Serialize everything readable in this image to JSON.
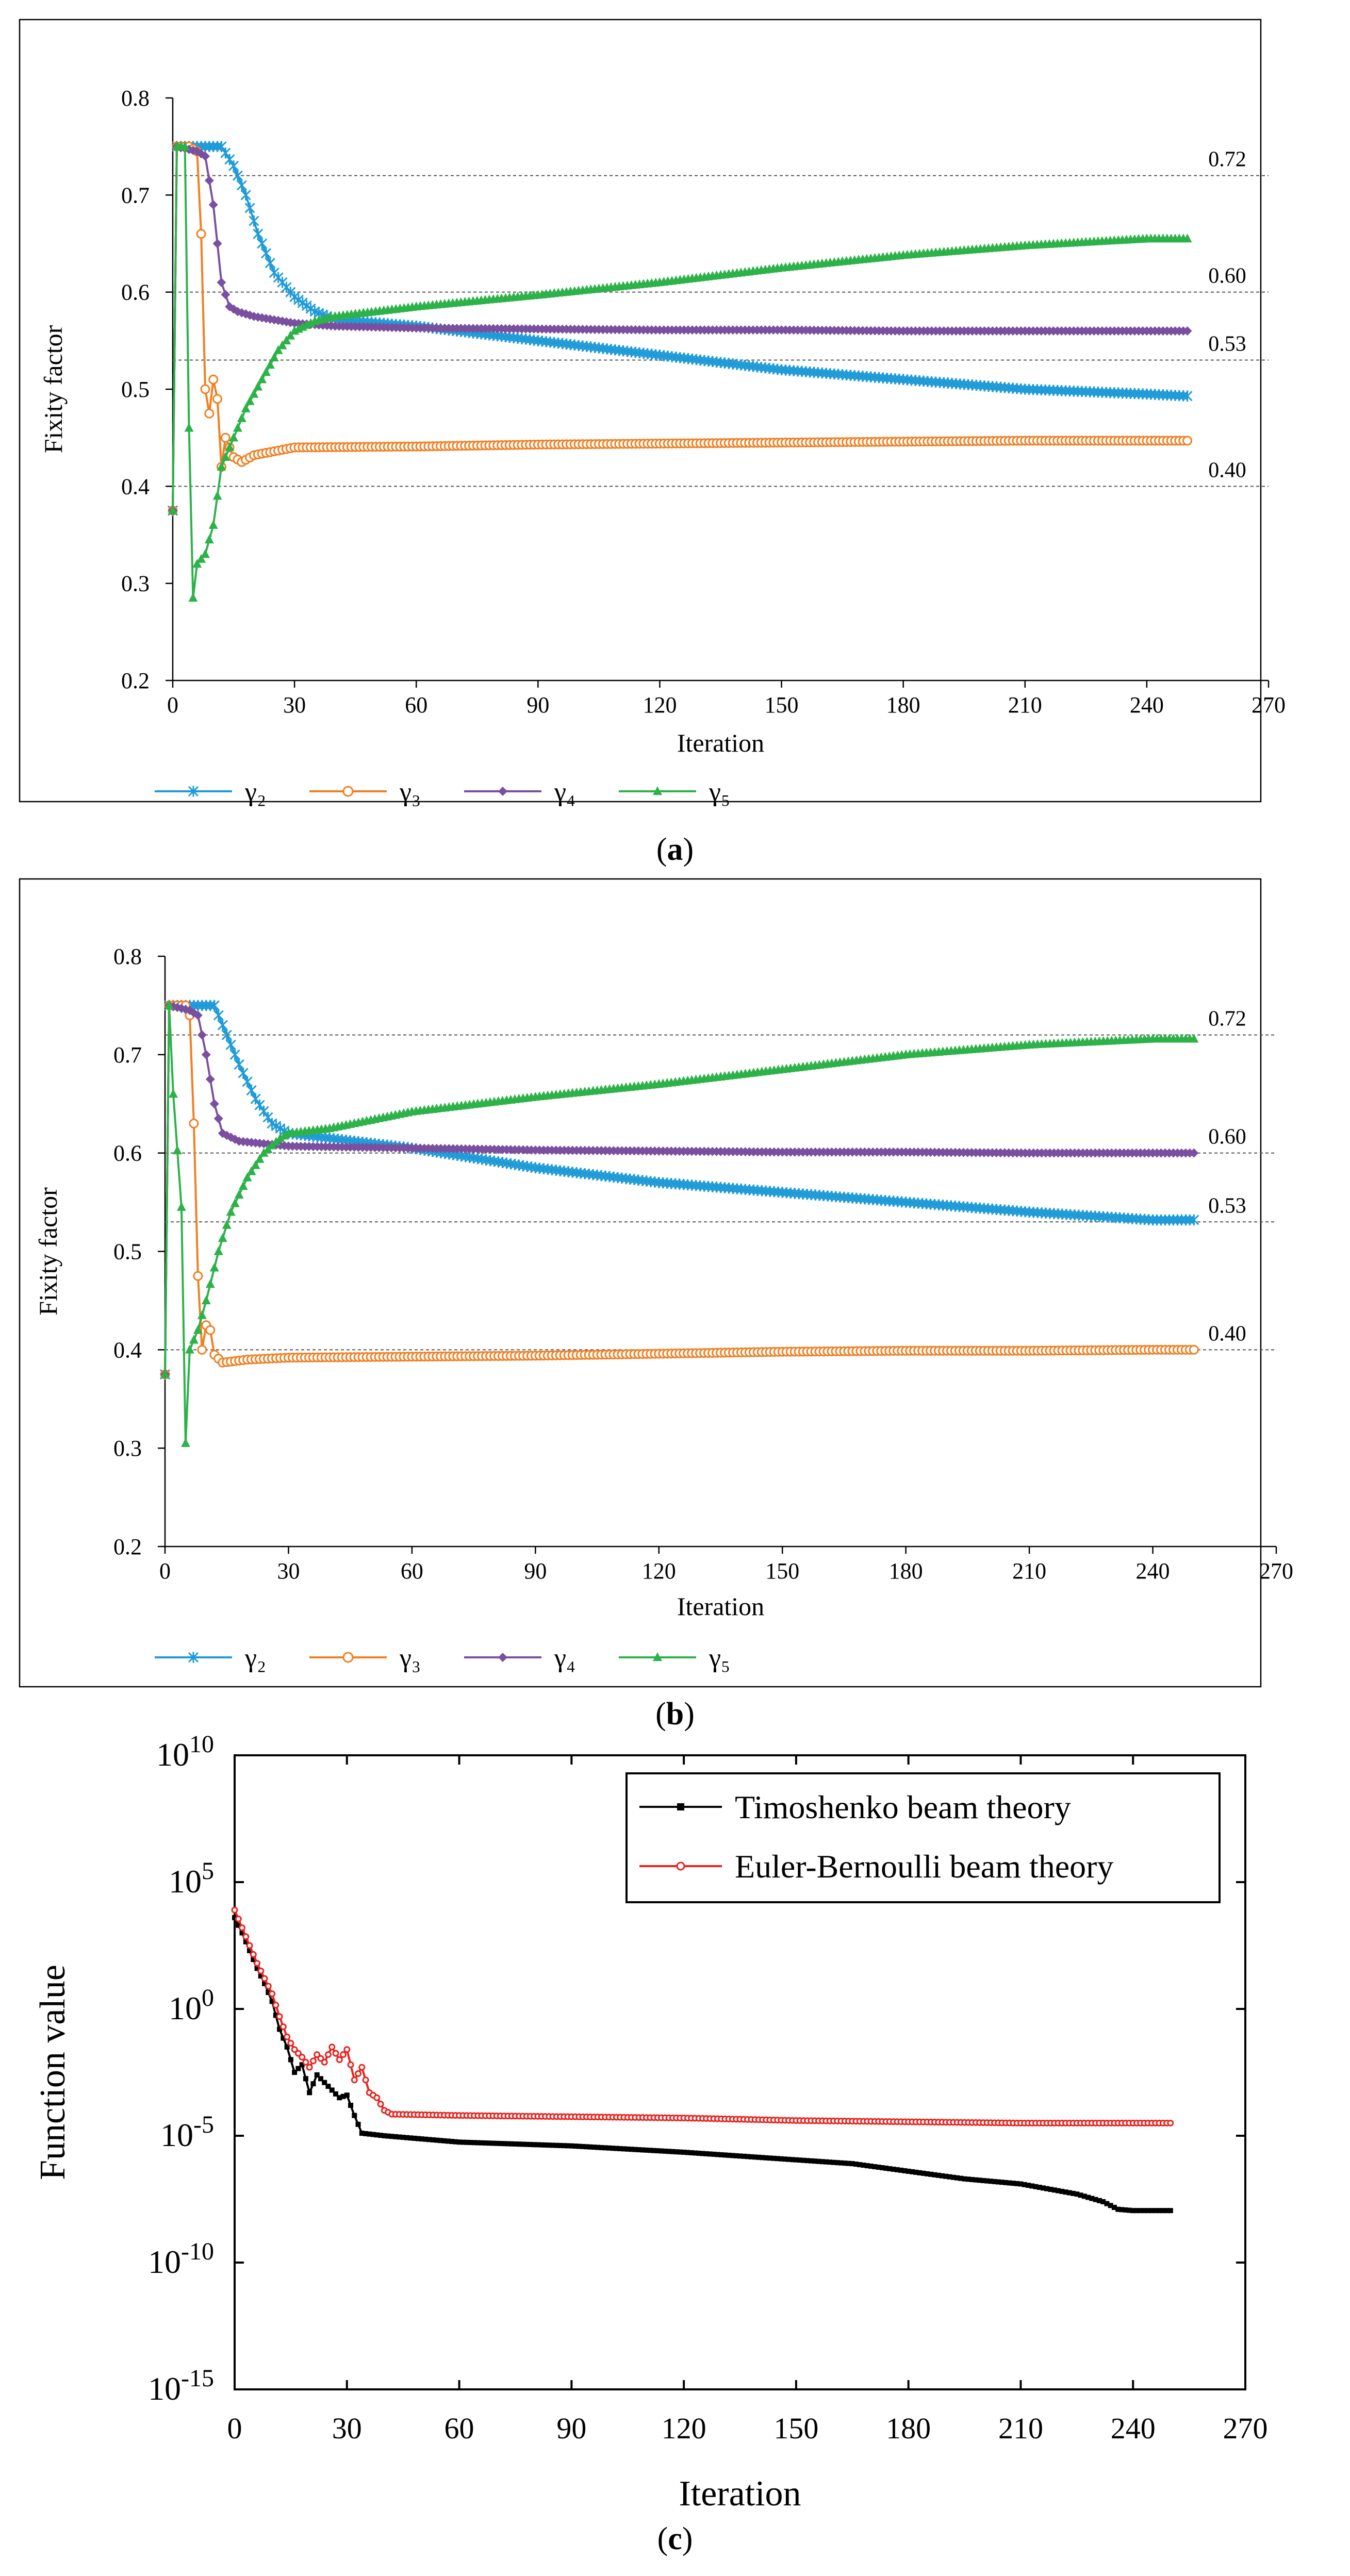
{
  "chart_data": [
    {
      "type": "line",
      "panel_label": "(a)",
      "title": "",
      "xlabel": "Iteration",
      "ylabel": "Fixity factor",
      "xlim": [
        0,
        270
      ],
      "ylim": [
        0.2,
        0.8
      ],
      "xticks": [
        0,
        30,
        60,
        90,
        120,
        150,
        180,
        210,
        240,
        270
      ],
      "xtick_labels": [
        "0",
        "30",
        "60",
        "90",
        "120",
        "150",
        "180",
        "210",
        "240",
        "270"
      ],
      "yticks": [
        0.2,
        0.3,
        0.4,
        0.5,
        0.6,
        0.7,
        0.8
      ],
      "ytick_labels": [
        "0.2",
        "0.3",
        "0.4",
        "0.5",
        "0.6",
        "0.7",
        "0.8"
      ],
      "reference_lines": [
        {
          "value": 0.72,
          "label": "0.72"
        },
        {
          "value": 0.6,
          "label": "0.60"
        },
        {
          "value": 0.53,
          "label": "0.53"
        },
        {
          "value": 0.4,
          "label": "0.40"
        }
      ],
      "legend_position": "bottom",
      "series": [
        {
          "name": "γ₂",
          "color": "#1f9bd7",
          "marker": "x",
          "points": [
            [
              0,
              0.375
            ],
            [
              1,
              0.75
            ],
            [
              5,
              0.75
            ],
            [
              12,
              0.75
            ],
            [
              15,
              0.73
            ],
            [
              18,
              0.7
            ],
            [
              21,
              0.66
            ],
            [
              25,
              0.62
            ],
            [
              30,
              0.595
            ],
            [
              35,
              0.58
            ],
            [
              40,
              0.572
            ],
            [
              60,
              0.565
            ],
            [
              90,
              0.55
            ],
            [
              120,
              0.535
            ],
            [
              150,
              0.52
            ],
            [
              180,
              0.51
            ],
            [
              210,
              0.5
            ],
            [
              240,
              0.495
            ],
            [
              250,
              0.493
            ]
          ]
        },
        {
          "name": "γ₃",
          "color": "#f07f22",
          "marker": "circle",
          "points": [
            [
              0,
              0.375
            ],
            [
              1,
              0.75
            ],
            [
              4,
              0.75
            ],
            [
              6,
              0.745
            ],
            [
              7,
              0.66
            ],
            [
              8,
              0.5
            ],
            [
              9,
              0.475
            ],
            [
              10,
              0.51
            ],
            [
              11,
              0.49
            ],
            [
              12,
              0.42
            ],
            [
              13,
              0.45
            ],
            [
              14,
              0.44
            ],
            [
              15,
              0.43
            ],
            [
              17,
              0.425
            ],
            [
              20,
              0.432
            ],
            [
              30,
              0.44
            ],
            [
              60,
              0.441
            ],
            [
              90,
              0.443
            ],
            [
              120,
              0.444
            ],
            [
              150,
              0.445
            ],
            [
              180,
              0.446
            ],
            [
              210,
              0.447
            ],
            [
              240,
              0.447
            ],
            [
              250,
              0.447
            ]
          ]
        },
        {
          "name": "γ₄",
          "color": "#7b4fa0",
          "marker": "diamond",
          "points": [
            [
              0,
              0.375
            ],
            [
              1,
              0.75
            ],
            [
              6,
              0.745
            ],
            [
              8,
              0.74
            ],
            [
              10,
              0.69
            ],
            [
              12,
              0.61
            ],
            [
              14,
              0.585
            ],
            [
              16,
              0.58
            ],
            [
              20,
              0.575
            ],
            [
              30,
              0.568
            ],
            [
              40,
              0.565
            ],
            [
              60,
              0.563
            ],
            [
              90,
              0.562
            ],
            [
              120,
              0.561
            ],
            [
              150,
              0.561
            ],
            [
              180,
              0.56
            ],
            [
              210,
              0.56
            ],
            [
              240,
              0.56
            ],
            [
              250,
              0.56
            ]
          ]
        },
        {
          "name": "γ₅",
          "color": "#2db24a",
          "marker": "triangle",
          "points": [
            [
              0,
              0.375
            ],
            [
              1,
              0.75
            ],
            [
              3,
              0.75
            ],
            [
              4,
              0.46
            ],
            [
              5,
              0.285
            ],
            [
              6,
              0.32
            ],
            [
              8,
              0.33
            ],
            [
              10,
              0.36
            ],
            [
              12,
              0.42
            ],
            [
              15,
              0.45
            ],
            [
              18,
              0.48
            ],
            [
              22,
              0.51
            ],
            [
              26,
              0.54
            ],
            [
              30,
              0.56
            ],
            [
              35,
              0.57
            ],
            [
              40,
              0.575
            ],
            [
              60,
              0.585
            ],
            [
              90,
              0.597
            ],
            [
              120,
              0.61
            ],
            [
              150,
              0.625
            ],
            [
              180,
              0.638
            ],
            [
              210,
              0.648
            ],
            [
              240,
              0.655
            ],
            [
              250,
              0.655
            ]
          ]
        }
      ]
    },
    {
      "type": "line",
      "panel_label": "(b)",
      "title": "",
      "xlabel": "Iteration",
      "ylabel": "Fixity factor",
      "xlim": [
        0,
        270
      ],
      "ylim": [
        0.2,
        0.8
      ],
      "xticks": [
        0,
        30,
        60,
        90,
        120,
        150,
        180,
        210,
        240,
        270
      ],
      "xtick_labels": [
        "0",
        "30",
        "60",
        "90",
        "120",
        "150",
        "180",
        "210",
        "240",
        "270"
      ],
      "yticks": [
        0.2,
        0.3,
        0.4,
        0.5,
        0.6,
        0.7,
        0.8
      ],
      "ytick_labels": [
        "0.2",
        "0.3",
        "0.4",
        "0.5",
        "0.6",
        "0.7",
        "0.8"
      ],
      "reference_lines": [
        {
          "value": 0.72,
          "label": "0.72"
        },
        {
          "value": 0.6,
          "label": "0.60"
        },
        {
          "value": 0.53,
          "label": "0.53"
        },
        {
          "value": 0.4,
          "label": "0.40"
        }
      ],
      "legend_position": "bottom",
      "series": [
        {
          "name": "γ₂",
          "color": "#1f9bd7",
          "marker": "x",
          "points": [
            [
              0,
              0.375
            ],
            [
              1,
              0.75
            ],
            [
              5,
              0.75
            ],
            [
              12,
              0.75
            ],
            [
              15,
              0.72
            ],
            [
              18,
              0.69
            ],
            [
              22,
              0.655
            ],
            [
              26,
              0.63
            ],
            [
              30,
              0.62
            ],
            [
              40,
              0.615
            ],
            [
              60,
              0.605
            ],
            [
              90,
              0.585
            ],
            [
              120,
              0.57
            ],
            [
              150,
              0.56
            ],
            [
              180,
              0.55
            ],
            [
              210,
              0.54
            ],
            [
              240,
              0.532
            ],
            [
              250,
              0.532
            ]
          ]
        },
        {
          "name": "γ₃",
          "color": "#f07f22",
          "marker": "circle",
          "points": [
            [
              0,
              0.375
            ],
            [
              1,
              0.75
            ],
            [
              5,
              0.75
            ],
            [
              6,
              0.74
            ],
            [
              7,
              0.63
            ],
            [
              8,
              0.475
            ],
            [
              9,
              0.4
            ],
            [
              10,
              0.425
            ],
            [
              11,
              0.42
            ],
            [
              12,
              0.395
            ],
            [
              14,
              0.387
            ],
            [
              20,
              0.39
            ],
            [
              30,
              0.392
            ],
            [
              60,
              0.393
            ],
            [
              90,
              0.394
            ],
            [
              120,
              0.396
            ],
            [
              150,
              0.398
            ],
            [
              180,
              0.399
            ],
            [
              210,
              0.399
            ],
            [
              240,
              0.4
            ],
            [
              250,
              0.4
            ]
          ]
        },
        {
          "name": "γ₄",
          "color": "#7b4fa0",
          "marker": "diamond",
          "points": [
            [
              0,
              0.375
            ],
            [
              1,
              0.75
            ],
            [
              6,
              0.745
            ],
            [
              8,
              0.74
            ],
            [
              10,
              0.7
            ],
            [
              12,
              0.65
            ],
            [
              14,
              0.62
            ],
            [
              18,
              0.612
            ],
            [
              30,
              0.607
            ],
            [
              60,
              0.605
            ],
            [
              90,
              0.603
            ],
            [
              120,
              0.602
            ],
            [
              150,
              0.601
            ],
            [
              180,
              0.601
            ],
            [
              210,
              0.6
            ],
            [
              240,
              0.6
            ],
            [
              250,
              0.6
            ]
          ]
        },
        {
          "name": "γ₅",
          "color": "#2db24a",
          "marker": "triangle",
          "points": [
            [
              0,
              0.375
            ],
            [
              1,
              0.75
            ],
            [
              2,
              0.66
            ],
            [
              4,
              0.545
            ],
            [
              5,
              0.305
            ],
            [
              6,
              0.4
            ],
            [
              8,
              0.42
            ],
            [
              10,
              0.45
            ],
            [
              13,
              0.5
            ],
            [
              16,
              0.54
            ],
            [
              20,
              0.575
            ],
            [
              24,
              0.6
            ],
            [
              28,
              0.615
            ],
            [
              30,
              0.62
            ],
            [
              40,
              0.625
            ],
            [
              60,
              0.642
            ],
            [
              90,
              0.657
            ],
            [
              120,
              0.67
            ],
            [
              150,
              0.685
            ],
            [
              180,
              0.7
            ],
            [
              210,
              0.71
            ],
            [
              240,
              0.716
            ],
            [
              250,
              0.716
            ]
          ]
        }
      ]
    },
    {
      "type": "line",
      "panel_label": "(c)",
      "title": "",
      "xlabel": "Iteration",
      "ylabel": "Function value",
      "yscale": "log",
      "xlim": [
        0,
        270
      ],
      "ylim_exp": [
        -15,
        10
      ],
      "xticks": [
        0,
        30,
        60,
        90,
        120,
        150,
        180,
        210,
        240,
        270
      ],
      "xtick_labels": [
        "0",
        "30",
        "60",
        "90",
        "120",
        "150",
        "180",
        "210",
        "240",
        "270"
      ],
      "ytick_exps": [
        10,
        5,
        0,
        -5,
        -10,
        -15
      ],
      "ytick_exp_labels": [
        "10",
        "5",
        "0",
        "-5",
        "-10",
        "-15"
      ],
      "ytick_base": "10",
      "legend_position": "top-right",
      "series": [
        {
          "name": "Timoshenko beam theory",
          "color": "#000000",
          "marker": "square",
          "points_log10": [
            [
              0,
              3.6
            ],
            [
              2,
              3.0
            ],
            [
              4,
              2.3
            ],
            [
              6,
              1.6
            ],
            [
              8,
              1.0
            ],
            [
              10,
              0.3
            ],
            [
              12,
              -0.8
            ],
            [
              14,
              -1.5
            ],
            [
              16,
              -2.5
            ],
            [
              18,
              -2.2
            ],
            [
              20,
              -3.3
            ],
            [
              22,
              -2.6
            ],
            [
              24,
              -2.9
            ],
            [
              26,
              -3.2
            ],
            [
              28,
              -3.5
            ],
            [
              30,
              -3.4
            ],
            [
              32,
              -4.2
            ],
            [
              34,
              -4.9
            ],
            [
              40,
              -5.0
            ],
            [
              60,
              -5.25
            ],
            [
              90,
              -5.4
            ],
            [
              120,
              -5.65
            ],
            [
              150,
              -5.95
            ],
            [
              165,
              -6.1
            ],
            [
              180,
              -6.4
            ],
            [
              195,
              -6.7
            ],
            [
              210,
              -6.9
            ],
            [
              225,
              -7.3
            ],
            [
              232,
              -7.6
            ],
            [
              236,
              -7.9
            ],
            [
              240,
              -7.95
            ],
            [
              250,
              -7.95
            ]
          ]
        },
        {
          "name": "Euler-Bernoulli beam theory",
          "color": "#e8231f",
          "marker": "circle",
          "points_log10": [
            [
              0,
              3.9
            ],
            [
              2,
              3.2
            ],
            [
              4,
              2.5
            ],
            [
              6,
              1.8
            ],
            [
              8,
              1.2
            ],
            [
              10,
              0.6
            ],
            [
              12,
              -0.3
            ],
            [
              14,
              -1.1
            ],
            [
              16,
              -1.6
            ],
            [
              18,
              -1.9
            ],
            [
              20,
              -2.3
            ],
            [
              22,
              -1.8
            ],
            [
              24,
              -2.1
            ],
            [
              26,
              -1.5
            ],
            [
              28,
              -2.0
            ],
            [
              30,
              -1.6
            ],
            [
              32,
              -2.8
            ],
            [
              34,
              -2.3
            ],
            [
              36,
              -3.3
            ],
            [
              38,
              -3.5
            ],
            [
              40,
              -4.0
            ],
            [
              42,
              -4.15
            ],
            [
              60,
              -4.2
            ],
            [
              90,
              -4.25
            ],
            [
              120,
              -4.3
            ],
            [
              150,
              -4.4
            ],
            [
              180,
              -4.45
            ],
            [
              210,
              -4.5
            ],
            [
              240,
              -4.5
            ],
            [
              250,
              -4.5
            ]
          ]
        }
      ]
    }
  ]
}
